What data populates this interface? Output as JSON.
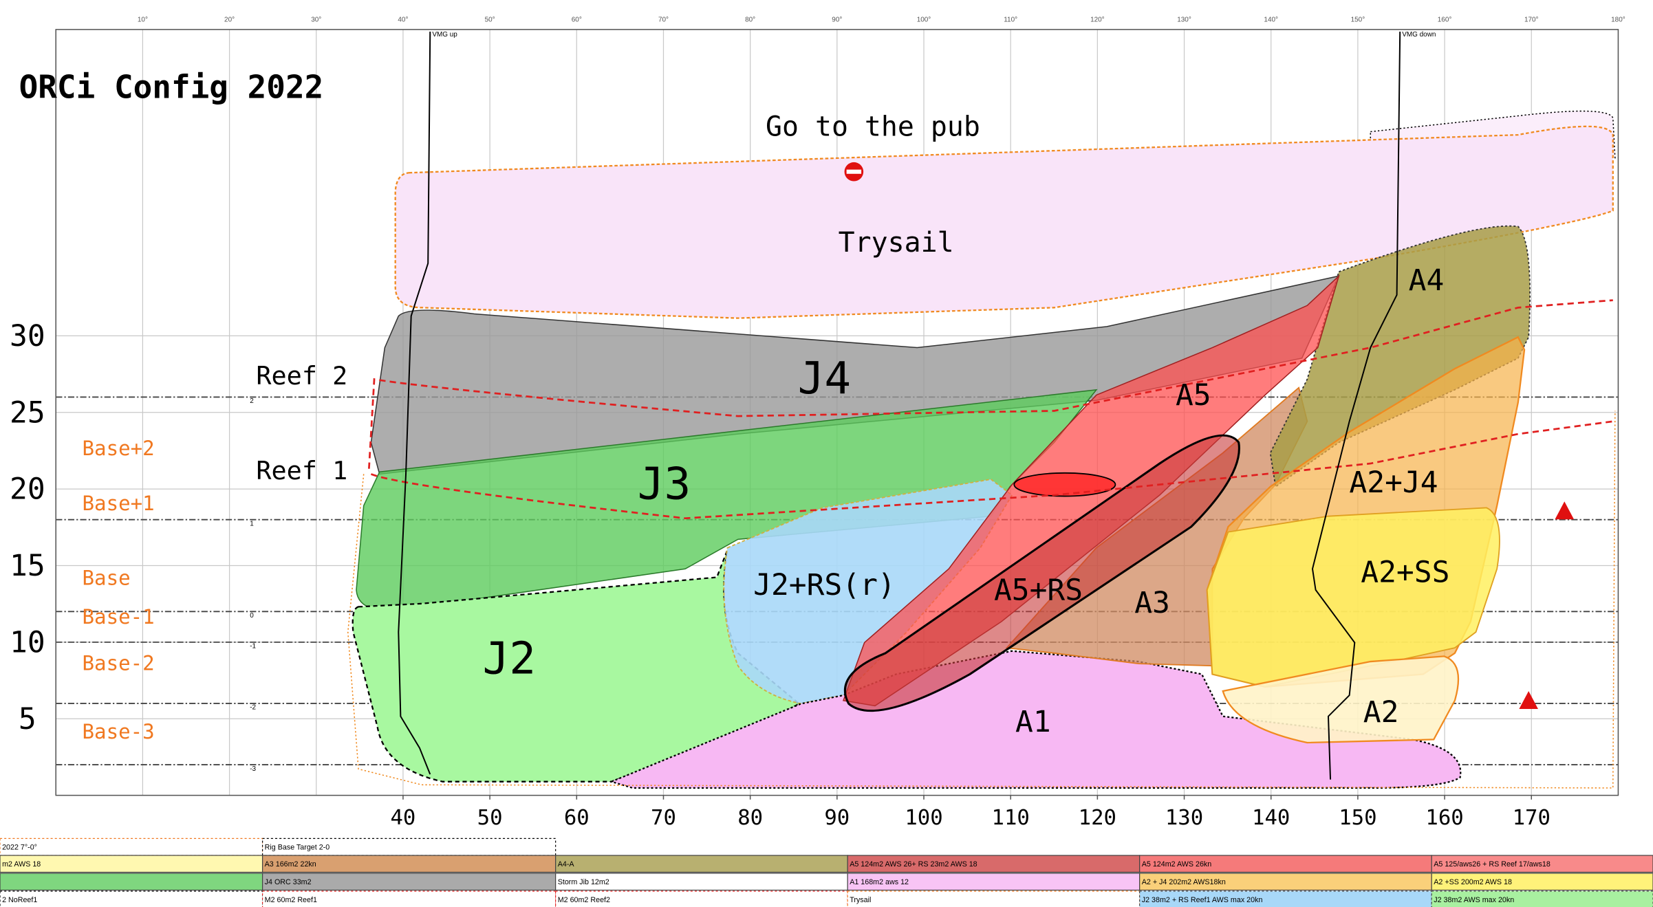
{
  "chart_data": {
    "type": "crossover",
    "title": "ORCi Config 2022",
    "xlim": [
      0,
      180
    ],
    "ylim": [
      0,
      50
    ],
    "xticks": [
      40,
      50,
      60,
      70,
      80,
      90,
      100,
      110,
      120,
      130,
      140,
      150,
      160,
      170
    ],
    "yticks": [
      5,
      10,
      15,
      20,
      25,
      30
    ],
    "top_ticks": [
      {
        "value": 10,
        "label": "10°"
      },
      {
        "value": 20,
        "label": "20°"
      },
      {
        "value": 30,
        "label": "30°"
      },
      {
        "value": 40,
        "label": "40°"
      },
      {
        "value": 50,
        "label": "50°"
      },
      {
        "value": 60,
        "label": "60°"
      },
      {
        "value": 70,
        "label": "70°"
      },
      {
        "value": 80,
        "label": "80°"
      },
      {
        "value": 90,
        "label": "90°"
      },
      {
        "value": 100,
        "label": "100°"
      },
      {
        "value": 110,
        "label": "110°"
      },
      {
        "value": 120,
        "label": "120°"
      },
      {
        "value": 130,
        "label": "130°"
      },
      {
        "value": 140,
        "label": "140°"
      },
      {
        "value": 150,
        "label": "150°"
      },
      {
        "value": 160,
        "label": "160°"
      },
      {
        "value": 170,
        "label": "170°"
      },
      {
        "value": 180,
        "label": "180°"
      }
    ],
    "grid": true,
    "reference_lines": [
      {
        "value": 26,
        "label": "2"
      },
      {
        "value": 18,
        "label": "1"
      },
      {
        "value": 12,
        "label": "0"
      },
      {
        "value": 10,
        "label": "-1"
      },
      {
        "value": 6,
        "label": "-2"
      },
      {
        "value": 2,
        "label": "-3"
      }
    ],
    "level_labels": [
      "Reef 2",
      "Reef 1",
      "Base+2",
      "Base+1",
      "Base",
      "Base-1",
      "Base-2",
      "Base-3"
    ],
    "curves": [
      "VMG up",
      "VMG down"
    ],
    "regions": [
      {
        "name": "Go to the pub",
        "color": "#fbeefb"
      },
      {
        "name": "Trysail",
        "color": "#f9e4f9"
      },
      {
        "name": "J4",
        "color": "#999999"
      },
      {
        "name": "J3",
        "color": "#5ccc5c"
      },
      {
        "name": "J2",
        "color": "#a8f8a0"
      },
      {
        "name": "J2+RS(r)",
        "color": "#a8d8f8"
      },
      {
        "name": "A1",
        "color": "#f7b8f3"
      },
      {
        "name": "A3",
        "color": "#d08a60"
      },
      {
        "name": "A4",
        "color": "#a89e48"
      },
      {
        "name": "A2+J4",
        "color": "#f6b24a"
      },
      {
        "name": "A2+SS",
        "color": "#fff060"
      },
      {
        "name": "A2",
        "color": "#fff3c8"
      },
      {
        "name": "A5",
        "color": "#ff5050"
      },
      {
        "name": "A5+RS",
        "color": "#c83a3a"
      }
    ],
    "legend": [
      [
        {
          "label": "2022 7°-0°",
          "color": "#ffffff"
        },
        {
          "label": "Rig Base Target 2-0",
          "color": "#ffffff"
        }
      ],
      [
        {
          "label": "m2 AWS 18",
          "color": "#fff8b0"
        },
        {
          "label": "A3 166m2 22kn",
          "color": "#d9a070"
        },
        {
          "label": "A4-A",
          "color": "#b8b070"
        },
        {
          "label": "A5 124m2 AWS 26+ RS 23m2 AWS 18",
          "color": "#d86a6a"
        },
        {
          "label": "A5 124m2 AWS 26kn",
          "color": "#f57a7a"
        },
        {
          "label": "A5 125/aws26 + RS Reef 17/aws18",
          "color": "#f88a8a"
        }
      ],
      [
        {
          "color": "#7fd67f"
        },
        {
          "label": "J4 ORC 33m2",
          "color": "#aaaaaa"
        },
        {
          "label": "Storm Jib 12m2",
          "color": "#ffffff"
        },
        {
          "label": "A1 168m2 aws 12",
          "color": "#f8c4f5"
        },
        {
          "label": "A2 + J4 202m2 AWS18kn",
          "color": "#fad07a"
        },
        {
          "label": "A2 +SS 200m2 AWS 18",
          "color": "#fff27a"
        }
      ],
      [
        {
          "label": "2 NoReef1",
          "color": "#ffffff"
        },
        {
          "label": "M2 60m2 Reef1",
          "color": "#ffffff"
        },
        {
          "label": "M2 60m2 Reef2",
          "color": "#ffffff"
        },
        {
          "label": "Trysail",
          "color": "#ffffff"
        },
        {
          "label": "J2 38m2 + RS Reef1 AWS max 20kn",
          "color": "#a8d8f8"
        },
        {
          "label": "J2 38m2 AWS max 20kn",
          "color": "#a8f0a0"
        }
      ]
    ]
  }
}
